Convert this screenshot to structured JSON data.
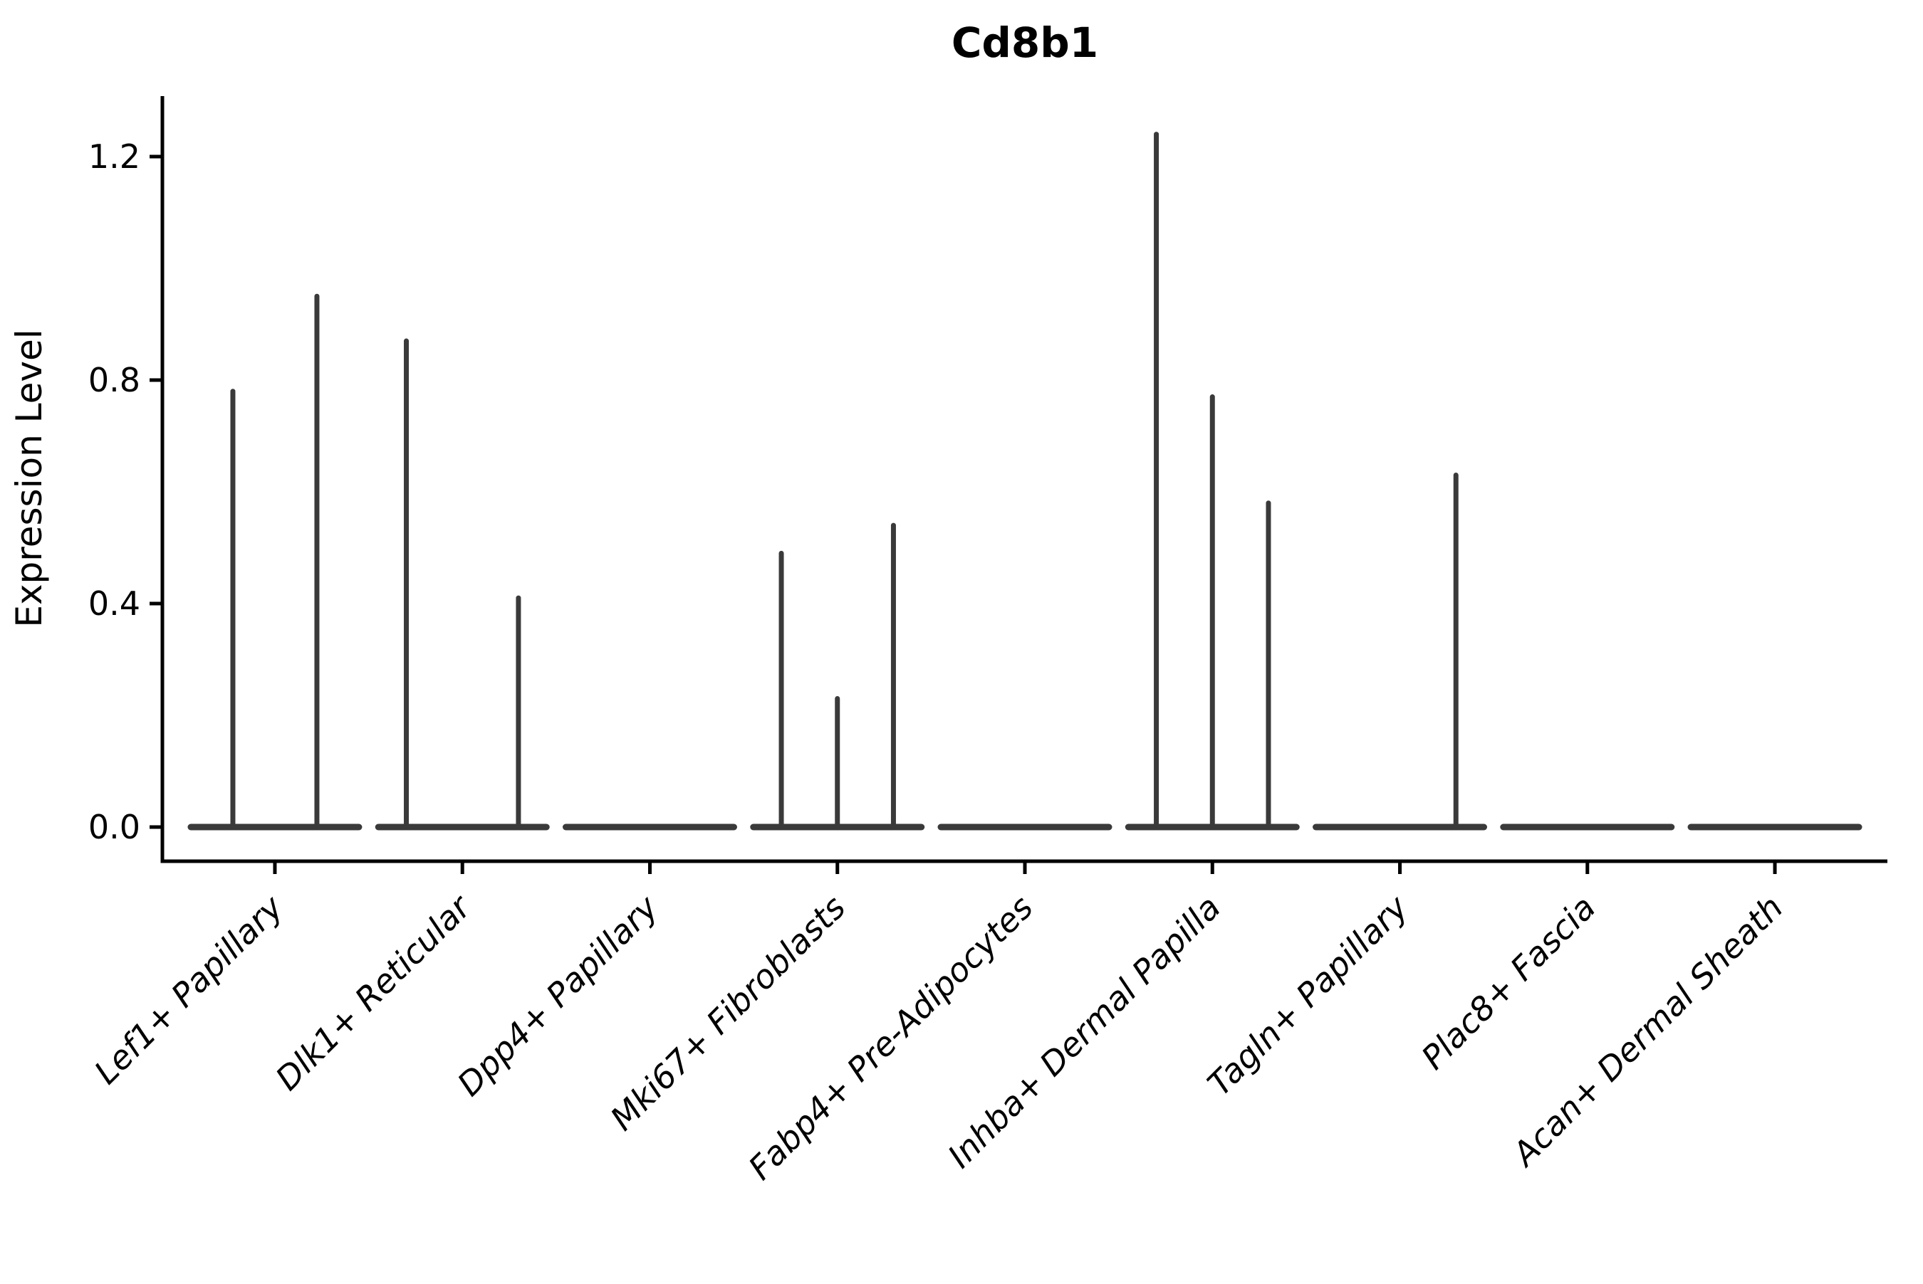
{
  "figure": {
    "title": "Cd8b1",
    "background_color": "#ffffff"
  },
  "chart_data": {
    "type": "violin",
    "title": "Cd8b1",
    "xlabel": "",
    "ylabel": "Expression Level",
    "grid": false,
    "legend": null,
    "ylim": [
      -0.06,
      1.31
    ],
    "axis_color": "#000000",
    "violin_color": "#3a3a3a",
    "xticklabel_rotation_deg": 45,
    "xticklabel_style": "italic",
    "yticks": [
      {
        "value": 0.0,
        "label": "0.0"
      },
      {
        "value": 0.4,
        "label": "0.4"
      },
      {
        "value": 0.8,
        "label": "0.8"
      },
      {
        "value": 1.2,
        "label": "1.2"
      }
    ],
    "categories": [
      {
        "label": "Lef1+ Papillary",
        "baseline_value": 0,
        "spikes": [
          {
            "pos": -0.5,
            "value": 0.78
          },
          {
            "pos": 0.5,
            "value": 0.95
          }
        ]
      },
      {
        "label": "Dlk1+ Reticular",
        "baseline_value": 0,
        "spikes": [
          {
            "pos": -0.667,
            "value": 0.87
          },
          {
            "pos": 0.667,
            "value": 0.41
          }
        ]
      },
      {
        "label": "Dpp4+ Papillary",
        "baseline_value": 0,
        "spikes": []
      },
      {
        "label": "Mki67+ Fibroblasts",
        "baseline_value": 0,
        "spikes": [
          {
            "pos": -0.667,
            "value": 0.49
          },
          {
            "pos": 0,
            "value": 0.23
          },
          {
            "pos": 0.667,
            "value": 0.54
          }
        ]
      },
      {
        "label": "Fabp4+ Pre-Adipocytes",
        "baseline_value": 0,
        "spikes": []
      },
      {
        "label": "Inhba+ Dermal Papilla",
        "baseline_value": 0,
        "spikes": [
          {
            "pos": -0.667,
            "value": 1.24
          },
          {
            "pos": 0,
            "value": 0.77
          },
          {
            "pos": 0.667,
            "value": 0.58
          }
        ]
      },
      {
        "label": "Tagln+ Papillary",
        "baseline_value": 0,
        "spikes": [
          {
            "pos": 0.667,
            "value": 0.63
          }
        ]
      },
      {
        "label": "Plac8+ Fascia",
        "baseline_value": 0,
        "spikes": []
      },
      {
        "label": "Acan+ Dermal Sheath",
        "baseline_value": 0,
        "spikes": []
      }
    ]
  }
}
